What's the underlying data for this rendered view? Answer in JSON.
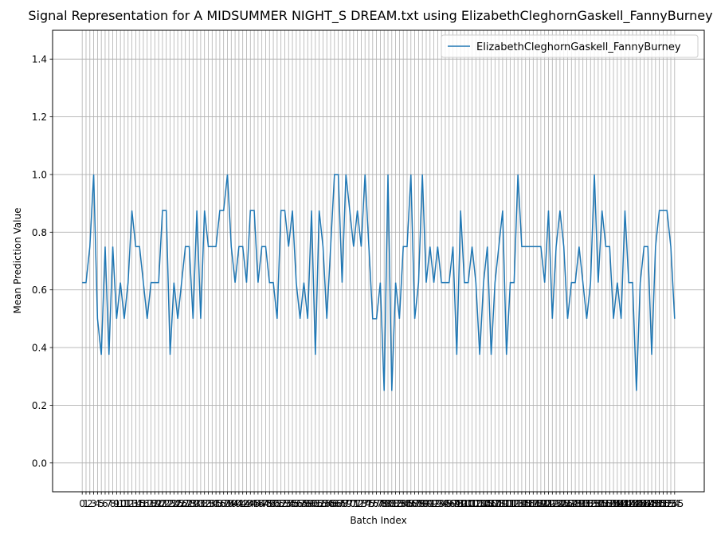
{
  "chart_data": {
    "type": "line",
    "title": "Signal Representation for A MIDSUMMER NIGHT_S DREAM.txt using ElizabethCleghornGaskell_FannyBurney",
    "x_label": "Batch Index",
    "y_label": "Mean Prediction Value",
    "x": [
      0,
      1,
      2,
      3,
      4,
      5,
      6,
      7,
      8,
      9,
      10,
      11,
      12,
      13,
      14,
      15,
      16,
      17,
      18,
      19,
      20,
      21,
      22,
      23,
      24,
      25,
      26,
      27,
      28,
      29,
      30,
      31,
      32,
      33,
      34,
      35,
      36,
      37,
      38,
      39,
      40,
      41,
      42,
      43,
      44,
      45,
      46,
      47,
      48,
      49,
      50,
      51,
      52,
      53,
      54,
      55,
      56,
      57,
      58,
      59,
      60,
      61,
      62,
      63,
      64,
      65,
      66,
      67,
      68,
      69,
      70,
      71,
      72,
      73,
      74,
      75,
      76,
      77,
      78,
      79,
      80,
      81,
      82,
      83,
      84,
      85,
      86,
      87,
      88,
      89,
      90,
      91,
      92,
      93,
      94,
      95,
      96,
      97,
      98,
      99,
      100,
      101,
      102,
      103,
      104,
      105,
      106,
      107,
      108,
      109,
      110,
      111,
      112,
      113,
      114,
      115,
      116,
      117,
      118,
      119,
      120,
      121,
      122,
      123,
      124,
      125,
      126,
      127,
      128,
      129,
      130,
      131,
      132,
      133,
      134,
      135,
      136,
      137,
      138,
      139,
      140,
      141,
      142,
      143,
      144,
      145,
      146,
      147,
      148,
      149,
      150,
      151,
      152,
      153,
      154,
      155
    ],
    "series": [
      {
        "name": "ElizabethCleghornGaskell_FannyBurney",
        "color": "#1f77b4",
        "values": [
          0.625,
          0.625,
          0.75,
          1.0,
          0.5,
          0.375,
          0.75,
          0.375,
          0.75,
          0.5,
          0.625,
          0.5,
          0.625,
          0.875,
          0.75,
          0.75,
          0.625,
          0.5,
          0.625,
          0.625,
          0.625,
          0.875,
          0.875,
          0.375,
          0.625,
          0.5,
          0.625,
          0.75,
          0.75,
          0.5,
          0.875,
          0.5,
          0.875,
          0.75,
          0.75,
          0.75,
          0.875,
          0.875,
          1.0,
          0.75,
          0.625,
          0.75,
          0.75,
          0.625,
          0.875,
          0.875,
          0.625,
          0.75,
          0.75,
          0.625,
          0.625,
          0.5,
          0.875,
          0.875,
          0.75,
          0.875,
          0.625,
          0.5,
          0.625,
          0.5,
          0.875,
          0.375,
          0.875,
          0.75,
          0.5,
          0.75,
          1.0,
          1.0,
          0.625,
          1.0,
          0.875,
          0.75,
          0.875,
          0.75,
          1.0,
          0.75,
          0.5,
          0.5,
          0.625,
          0.25,
          1.0,
          0.25,
          0.625,
          0.5,
          0.75,
          0.75,
          1.0,
          0.5,
          0.625,
          1.0,
          0.625,
          0.75,
          0.625,
          0.75,
          0.625,
          0.625,
          0.625,
          0.75,
          0.375,
          0.875,
          0.625,
          0.625,
          0.75,
          0.625,
          0.375,
          0.625,
          0.75,
          0.375,
          0.625,
          0.75,
          0.875,
          0.375,
          0.625,
          0.625,
          1.0,
          0.75,
          0.75,
          0.75,
          0.75,
          0.75,
          0.75,
          0.625,
          0.875,
          0.5,
          0.75,
          0.875,
          0.75,
          0.5,
          0.625,
          0.625,
          0.75,
          0.625,
          0.5,
          0.625,
          1.0,
          0.625,
          0.875,
          0.75,
          0.75,
          0.5,
          0.625,
          0.5,
          0.875,
          0.625,
          0.625,
          0.25,
          0.625,
          0.75,
          0.75,
          0.375,
          0.75,
          0.875,
          0.875,
          0.875,
          0.75,
          0.5
        ]
      }
    ],
    "xlim": [
      -7.75,
      162.75
    ],
    "xticks": [
      0,
      1,
      2,
      3,
      4,
      5,
      6,
      7,
      8,
      9,
      10,
      11,
      12,
      13,
      14,
      15,
      16,
      17,
      18,
      19,
      20,
      21,
      22,
      23,
      24,
      25,
      26,
      27,
      28,
      29,
      30,
      31,
      32,
      33,
      34,
      35,
      36,
      37,
      38,
      39,
      40,
      41,
      42,
      43,
      44,
      45,
      46,
      47,
      48,
      49,
      50,
      51,
      52,
      53,
      54,
      55,
      56,
      57,
      58,
      59,
      60,
      61,
      62,
      63,
      64,
      65,
      66,
      67,
      68,
      69,
      70,
      71,
      72,
      73,
      74,
      75,
      76,
      77,
      78,
      79,
      80,
      81,
      82,
      83,
      84,
      85,
      86,
      87,
      88,
      89,
      90,
      91,
      92,
      93,
      94,
      95,
      96,
      97,
      98,
      99,
      100,
      101,
      102,
      103,
      104,
      105,
      106,
      107,
      108,
      109,
      110,
      111,
      112,
      113,
      114,
      115,
      116,
      117,
      118,
      119,
      120,
      121,
      122,
      123,
      124,
      125,
      126,
      127,
      128,
      129,
      130,
      131,
      132,
      133,
      134,
      135,
      136,
      137,
      138,
      139,
      140,
      141,
      142,
      143,
      144,
      145,
      146,
      147,
      148,
      149,
      150,
      151,
      152,
      153,
      154,
      155
    ],
    "ylim": [
      -0.1,
      1.5
    ],
    "yticks": [
      {
        "value": 0,
        "label": "0.0"
      },
      {
        "value": 0.2,
        "label": "0.2"
      },
      {
        "value": 0.4,
        "label": "0.4"
      },
      {
        "value": 0.6,
        "label": "0.6"
      },
      {
        "value": 0.8,
        "label": "0.8"
      },
      {
        "value": 1.0,
        "label": "1.0"
      },
      {
        "value": 1.2,
        "label": "1.2"
      },
      {
        "value": 1.4,
        "label": "1.4"
      }
    ],
    "grid": true,
    "legend": "upper right"
  }
}
